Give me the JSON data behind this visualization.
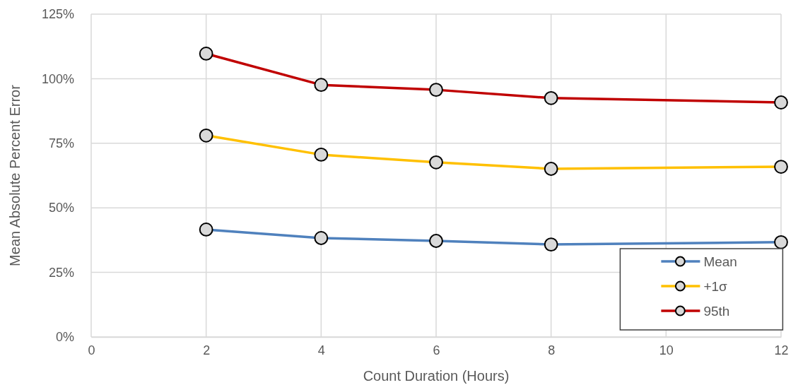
{
  "chart_data": {
    "type": "line",
    "xlabel": "Count Duration (Hours)",
    "ylabel": "Mean Absolute Percent Error",
    "x": [
      2,
      4,
      6,
      8,
      12
    ],
    "series": [
      {
        "name": "Mean",
        "color": "#4f81bd",
        "values": [
          41.6,
          38.3,
          37.2,
          35.8,
          36.7
        ]
      },
      {
        "name": "+1σ",
        "color": "#ffc000",
        "values": [
          78,
          70.6,
          67.6,
          65.1,
          65.9
        ]
      },
      {
        "name": "95th",
        "color": "#c00000",
        "values": [
          109.7,
          97.6,
          95.7,
          92.5,
          90.8
        ]
      }
    ],
    "xlim": [
      0,
      12
    ],
    "xticks": [
      0,
      2,
      4,
      6,
      8,
      10,
      12
    ],
    "ylim": [
      0,
      125
    ],
    "yticks": [
      {
        "value": 0,
        "label": "0%"
      },
      {
        "value": 25,
        "label": "25%"
      },
      {
        "value": 50,
        "label": "50%"
      },
      {
        "value": 75,
        "label": "75%"
      },
      {
        "value": 100,
        "label": "100%"
      },
      {
        "value": 125,
        "label": "125%"
      }
    ],
    "grid": true,
    "legend": "bottom right",
    "marker": "circle",
    "line_style": "solid"
  }
}
